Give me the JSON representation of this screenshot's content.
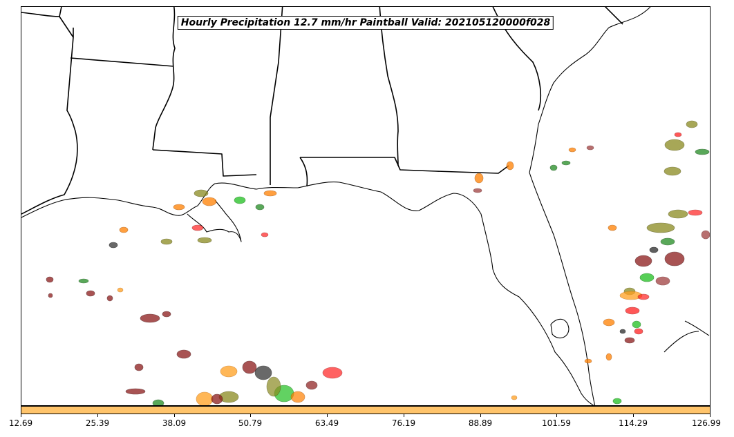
{
  "title": "Hourly Precipitation 12.7 mm/hr Paintball Valid: 202105120000f028",
  "colorbar": {
    "color": "#ffc46b",
    "ticks": [
      "12.69",
      "25.39",
      "38.09",
      "50.79",
      "63.49",
      "76.19",
      "88.89",
      "101.59",
      "114.29",
      "126.99"
    ]
  },
  "map": {
    "region": "Southeastern United States and Gulf of Mexico",
    "background": "#ffffff",
    "boundary_color": "#000000",
    "paintball_colors": [
      "#8b1a1a",
      "#ff2020",
      "#ff7f00",
      "#ffa020",
      "#8a8a20",
      "#228b22",
      "#20c020",
      "#2a2a2a",
      "#a04040"
    ]
  }
}
